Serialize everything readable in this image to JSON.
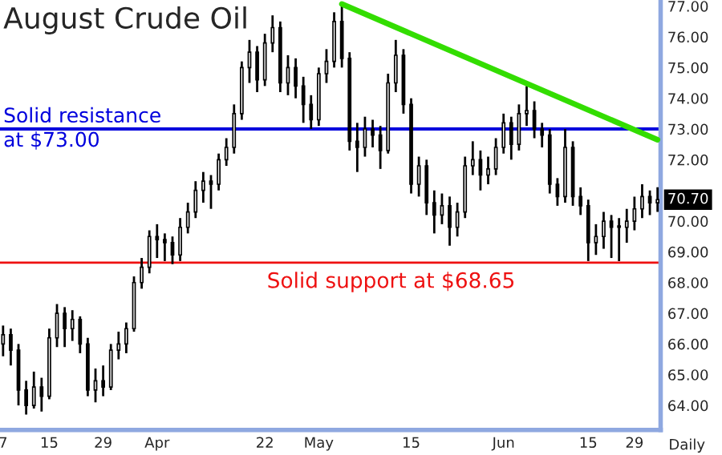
{
  "chart_data": {
    "type": "candlestick",
    "title": "August Crude Oil",
    "xlabel": "Daily",
    "color": "#000000",
    "categories": [
      "7",
      null,
      null,
      null,
      null,
      null,
      "15",
      null,
      null,
      null,
      null,
      null,
      null,
      "29",
      null,
      null,
      null,
      null,
      null,
      null,
      "Apr",
      null,
      null,
      null,
      null,
      null,
      null,
      null,
      null,
      null,
      null,
      null,
      null,
      null,
      "22",
      null,
      null,
      null,
      null,
      null,
      null,
      "May",
      null,
      null,
      null,
      null,
      null,
      null,
      null,
      null,
      null,
      null,
      null,
      "15",
      null,
      null,
      null,
      null,
      null,
      null,
      null,
      null,
      null,
      null,
      null,
      "Jun",
      null,
      null,
      null,
      null,
      null,
      null,
      null,
      null,
      null,
      null,
      "15",
      null,
      null,
      null,
      null,
      null,
      "29",
      null,
      null,
      null
    ],
    "ohlc": [
      [
        66.0,
        66.6,
        65.6,
        66.3
      ],
      [
        66.3,
        66.5,
        65.3,
        65.8
      ],
      [
        65.8,
        66.0,
        64.0,
        64.5
      ],
      [
        64.5,
        64.8,
        63.7,
        64.0
      ],
      [
        64.0,
        65.1,
        63.9,
        64.6
      ],
      [
        64.6,
        64.9,
        63.8,
        64.3
      ],
      [
        64.3,
        66.5,
        64.2,
        66.2
      ],
      [
        66.2,
        67.3,
        65.9,
        67.0
      ],
      [
        67.0,
        67.2,
        65.9,
        66.5
      ],
      [
        66.5,
        67.1,
        66.1,
        66.8
      ],
      [
        66.8,
        66.9,
        65.7,
        66.0
      ],
      [
        66.0,
        66.2,
        64.3,
        64.5
      ],
      [
        64.5,
        65.2,
        64.1,
        64.8
      ],
      [
        64.8,
        65.3,
        64.3,
        64.6
      ],
      [
        64.6,
        66.0,
        64.5,
        65.8
      ],
      [
        65.8,
        66.4,
        65.5,
        66.0
      ],
      [
        66.0,
        66.7,
        65.7,
        66.5
      ],
      [
        66.5,
        68.2,
        66.4,
        68.0
      ],
      [
        68.0,
        68.8,
        67.8,
        68.5
      ],
      [
        68.5,
        69.7,
        68.3,
        69.5
      ],
      [
        69.5,
        69.9,
        68.8,
        69.4
      ],
      [
        69.4,
        69.6,
        68.7,
        69.3
      ],
      [
        69.3,
        69.5,
        68.6,
        68.9
      ],
      [
        68.9,
        70.1,
        68.7,
        69.8
      ],
      [
        69.8,
        70.6,
        69.6,
        70.3
      ],
      [
        70.3,
        71.3,
        70.1,
        71.0
      ],
      [
        71.0,
        71.6,
        70.6,
        71.3
      ],
      [
        71.3,
        71.5,
        70.4,
        71.2
      ],
      [
        71.2,
        72.2,
        71.0,
        72.0
      ],
      [
        72.0,
        72.7,
        71.8,
        72.4
      ],
      [
        72.4,
        73.8,
        72.2,
        73.5
      ],
      [
        73.5,
        75.2,
        73.3,
        75.0
      ],
      [
        75.0,
        75.9,
        74.5,
        75.5
      ],
      [
        75.5,
        75.7,
        74.2,
        74.6
      ],
      [
        74.6,
        76.1,
        74.4,
        75.8
      ],
      [
        75.8,
        76.7,
        75.5,
        76.3
      ],
      [
        76.3,
        76.5,
        74.2,
        74.5
      ],
      [
        74.5,
        75.4,
        74.1,
        75.0
      ],
      [
        75.0,
        75.3,
        74.0,
        74.4
      ],
      [
        74.4,
        74.7,
        73.2,
        73.8
      ],
      [
        73.8,
        74.1,
        73.0,
        73.3
      ],
      [
        73.3,
        75.0,
        73.1,
        74.8
      ],
      [
        74.8,
        75.6,
        74.5,
        75.2
      ],
      [
        75.2,
        76.8,
        75.0,
        76.5
      ],
      [
        76.5,
        77.1,
        75.0,
        75.3
      ],
      [
        75.3,
        75.5,
        72.3,
        72.6
      ],
      [
        72.6,
        73.2,
        71.6,
        72.4
      ],
      [
        72.4,
        73.4,
        72.1,
        73.0
      ],
      [
        73.0,
        73.3,
        72.4,
        72.8
      ],
      [
        72.8,
        73.1,
        71.7,
        72.3
      ],
      [
        72.3,
        74.8,
        72.2,
        74.5
      ],
      [
        74.5,
        75.9,
        74.2,
        75.4
      ],
      [
        75.4,
        75.6,
        73.5,
        73.8
      ],
      [
        73.8,
        74.0,
        70.9,
        71.2
      ],
      [
        71.2,
        72.1,
        70.8,
        71.8
      ],
      [
        71.8,
        72.0,
        70.2,
        70.6
      ],
      [
        70.6,
        71.0,
        69.6,
        70.2
      ],
      [
        70.2,
        70.9,
        69.9,
        70.5
      ],
      [
        70.5,
        70.8,
        69.2,
        69.8
      ],
      [
        69.8,
        70.6,
        69.5,
        70.3
      ],
      [
        70.3,
        72.1,
        70.1,
        71.8
      ],
      [
        71.8,
        72.6,
        71.5,
        72.0
      ],
      [
        72.0,
        72.3,
        71.0,
        71.5
      ],
      [
        71.5,
        72.1,
        71.2,
        71.7
      ],
      [
        71.7,
        72.7,
        71.5,
        72.4
      ],
      [
        72.4,
        73.5,
        72.2,
        73.2
      ],
      [
        73.2,
        73.4,
        72.0,
        72.5
      ],
      [
        72.5,
        73.8,
        72.3,
        73.5
      ],
      [
        73.5,
        74.4,
        73.1,
        73.6
      ],
      [
        73.6,
        73.9,
        72.7,
        73.0
      ],
      [
        73.0,
        73.2,
        72.4,
        72.8
      ],
      [
        72.8,
        73.0,
        70.9,
        71.2
      ],
      [
        71.2,
        71.4,
        70.5,
        70.8
      ],
      [
        70.8,
        73.0,
        70.6,
        72.4
      ],
      [
        72.4,
        72.6,
        70.5,
        70.8
      ],
      [
        70.8,
        71.1,
        70.2,
        70.5
      ],
      [
        70.5,
        70.7,
        68.7,
        69.3
      ],
      [
        69.3,
        69.9,
        68.9,
        69.5
      ],
      [
        69.5,
        70.3,
        69.1,
        70.0
      ],
      [
        70.0,
        70.2,
        68.8,
        69.8
      ],
      [
        69.8,
        70.1,
        68.7,
        69.8
      ],
      [
        69.8,
        70.4,
        69.3,
        70.0
      ],
      [
        70.0,
        70.8,
        69.7,
        70.4
      ],
      [
        70.4,
        71.2,
        70.1,
        70.8
      ],
      [
        70.8,
        71.0,
        70.2,
        70.6
      ],
      [
        70.6,
        71.1,
        70.3,
        70.7
      ]
    ],
    "series": [
      {
        "type": "line",
        "color": "#33dd00",
        "values": [
          null,
          null,
          null,
          null,
          null,
          null,
          null,
          null,
          null,
          null,
          null,
          null,
          null,
          null,
          null,
          null,
          null,
          null,
          null,
          null,
          null,
          null,
          null,
          null,
          null,
          null,
          null,
          null,
          null,
          null,
          null,
          null,
          null,
          null,
          null,
          null,
          null,
          null,
          null,
          null,
          null,
          null,
          null,
          null,
          77.07,
          null,
          null,
          null,
          null,
          null,
          null,
          null,
          null,
          null,
          null,
          null,
          null,
          null,
          null,
          null,
          null,
          null,
          null,
          null,
          null,
          null,
          null,
          null,
          null,
          null,
          null,
          null,
          null,
          null,
          null,
          null,
          null,
          null,
          null,
          null,
          null,
          null,
          null,
          null,
          null,
          72.65
        ]
      }
    ],
    "ref_lines": [
      {
        "axis": "y",
        "value": 73.0,
        "label": "Solid resistance\nat $73.00",
        "color": "#0000dd"
      },
      {
        "axis": "y",
        "value": 68.65,
        "label": "Solid support at $68.65",
        "color": "#ee1111"
      }
    ],
    "annotations": [
      {
        "text": "70.70",
        "y": 70.7
      }
    ],
    "ylim": [
      63.2,
      77.2
    ],
    "yticks": [
      {
        "value": 64,
        "label": "64.00"
      },
      {
        "value": 65,
        "label": "65.00"
      },
      {
        "value": 66,
        "label": "66.00"
      },
      {
        "value": 67,
        "label": "67.00"
      },
      {
        "value": 68,
        "label": "68.00"
      },
      {
        "value": 69,
        "label": "69.00"
      },
      {
        "value": 70,
        "label": "70.00"
      },
      {
        "value": 72,
        "label": "72.00"
      },
      {
        "value": 73,
        "label": "73.00"
      },
      {
        "value": 74,
        "label": "74.00"
      },
      {
        "value": 75,
        "label": "75.00"
      },
      {
        "value": 76,
        "label": "76.00"
      },
      {
        "value": 77,
        "label": "77.00"
      }
    ],
    "grid": false,
    "legend": false
  }
}
